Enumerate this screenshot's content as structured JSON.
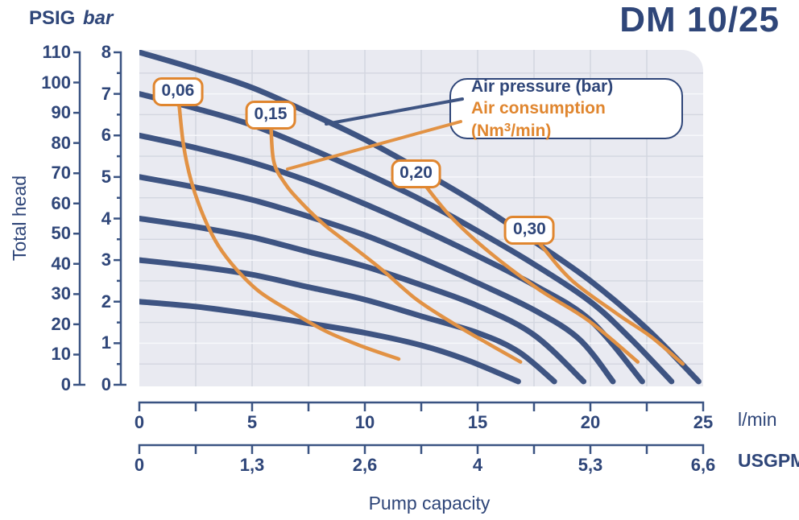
{
  "title": "DM 10/25",
  "y_axis": {
    "axis_label": "Total head",
    "left_unit": "PSIG",
    "right_unit": "bar",
    "psig_ticks": [
      0,
      10,
      20,
      30,
      40,
      50,
      60,
      70,
      80,
      90,
      100,
      110
    ],
    "bar_ticks": [
      0,
      1,
      2,
      3,
      4,
      5,
      6,
      7,
      8
    ]
  },
  "x_axis": {
    "label": "Pump capacity",
    "lmin_unit": "l/min",
    "usgpm_unit": "USGPM",
    "lmin_tick_labels": [
      "0",
      "5",
      "10",
      "15",
      "20",
      "25"
    ],
    "usgpm_tick_labels": [
      "0",
      "1,3",
      "2,6",
      "4",
      "5,3",
      "6,6"
    ]
  },
  "legend": {
    "air_pressure_label": "Air pressure (bar)",
    "air_consumption_prefix": "Air consumption (Nm",
    "air_consumption_sup": "3",
    "air_consumption_suffix": "/min)"
  },
  "colors": {
    "navy_text": "#2f4679",
    "curve_blue": "#3e5482",
    "curve_orange": "#e29244",
    "annotation_border_orange": "#e0862f",
    "plot_background": "#e9eaf1",
    "grid_dark": "#d3d6e0",
    "grid_light": "#f7f8fb",
    "axis": "#3a5382"
  },
  "chart_data": {
    "type": "line",
    "title": "DM 10/25",
    "xlabel": "Pump capacity",
    "x_units": [
      "l/min",
      "USGPM"
    ],
    "x_range_lmin": [
      0,
      25
    ],
    "x_range_usgpm": [
      0,
      6.6
    ],
    "ylabel": "Total head",
    "y_units": [
      "PSIG",
      "bar"
    ],
    "y_range_psig": [
      0,
      110
    ],
    "y_range_bar": [
      0,
      8
    ],
    "grid": "on",
    "legend_position": "top-right",
    "air_pressure_curves": [
      {
        "air_pressure_bar": 8,
        "points_lmin_bar": [
          [
            0,
            8
          ],
          [
            2.5,
            7.6
          ],
          [
            5,
            7.15
          ],
          [
            7.5,
            6.55
          ],
          [
            10,
            5.9
          ],
          [
            12.5,
            5.15
          ],
          [
            15,
            4.35
          ],
          [
            17.5,
            3.45
          ],
          [
            20,
            2.5
          ],
          [
            22.5,
            1.35
          ],
          [
            24.8,
            0.08
          ]
        ]
      },
      {
        "air_pressure_bar": 7,
        "points_lmin_bar": [
          [
            0,
            7
          ],
          [
            2.5,
            6.65
          ],
          [
            5,
            6.25
          ],
          [
            7.5,
            5.7
          ],
          [
            10,
            5.1
          ],
          [
            12.5,
            4.45
          ],
          [
            15,
            3.7
          ],
          [
            17.5,
            2.9
          ],
          [
            20,
            2.0
          ],
          [
            21.8,
            1.1
          ],
          [
            23.6,
            0.08
          ]
        ]
      },
      {
        "air_pressure_bar": 6,
        "points_lmin_bar": [
          [
            0,
            6
          ],
          [
            2.5,
            5.7
          ],
          [
            5,
            5.35
          ],
          [
            7.5,
            4.9
          ],
          [
            10,
            4.35
          ],
          [
            12.5,
            3.75
          ],
          [
            15,
            3.1
          ],
          [
            17.5,
            2.4
          ],
          [
            20,
            1.55
          ],
          [
            22.3,
            0.08
          ]
        ]
      },
      {
        "air_pressure_bar": 5,
        "points_lmin_bar": [
          [
            0,
            5
          ],
          [
            2.5,
            4.75
          ],
          [
            5,
            4.45
          ],
          [
            7.5,
            4.05
          ],
          [
            10,
            3.6
          ],
          [
            12.5,
            3.05
          ],
          [
            15,
            2.45
          ],
          [
            17.5,
            1.8
          ],
          [
            19.5,
            1.1
          ],
          [
            21.0,
            0.08
          ]
        ]
      },
      {
        "air_pressure_bar": 4,
        "points_lmin_bar": [
          [
            0,
            4
          ],
          [
            2.5,
            3.8
          ],
          [
            5,
            3.55
          ],
          [
            7.5,
            3.2
          ],
          [
            10,
            2.85
          ],
          [
            12.5,
            2.4
          ],
          [
            15,
            1.9
          ],
          [
            17.5,
            1.2
          ],
          [
            19.7,
            0.08
          ]
        ]
      },
      {
        "air_pressure_bar": 3,
        "points_lmin_bar": [
          [
            0,
            3
          ],
          [
            2.5,
            2.85
          ],
          [
            5,
            2.65
          ],
          [
            7.5,
            2.35
          ],
          [
            10,
            2.05
          ],
          [
            12.5,
            1.65
          ],
          [
            15,
            1.25
          ],
          [
            16.8,
            0.8
          ],
          [
            18.4,
            0.08
          ]
        ]
      },
      {
        "air_pressure_bar": 2,
        "points_lmin_bar": [
          [
            0,
            2
          ],
          [
            2.5,
            1.88
          ],
          [
            5,
            1.7
          ],
          [
            7.5,
            1.48
          ],
          [
            10,
            1.25
          ],
          [
            12.5,
            0.95
          ],
          [
            14.5,
            0.6
          ],
          [
            16.8,
            0.08
          ]
        ]
      }
    ],
    "air_consumption_curves": [
      {
        "label": "0,06",
        "label_pos_lmin_bar": [
          1.71,
          7.06
        ],
        "points_lmin_bar": [
          [
            1.71,
            7.06
          ],
          [
            1.95,
            5.8
          ],
          [
            2.3,
            4.9
          ],
          [
            2.85,
            4.05
          ],
          [
            3.5,
            3.35
          ],
          [
            4.3,
            2.78
          ],
          [
            5.3,
            2.25
          ],
          [
            6.6,
            1.8
          ],
          [
            8.3,
            1.28
          ],
          [
            9.9,
            0.92
          ],
          [
            11.5,
            0.62
          ]
        ]
      },
      {
        "label": "0,15",
        "label_pos_lmin_bar": [
          5.82,
          6.48
        ],
        "points_lmin_bar": [
          [
            5.82,
            6.48
          ],
          [
            5.95,
            5.4
          ],
          [
            6.45,
            4.85
          ],
          [
            7.15,
            4.4
          ],
          [
            8.2,
            3.85
          ],
          [
            9.4,
            3.35
          ],
          [
            10.8,
            2.75
          ],
          [
            12.3,
            2.05
          ],
          [
            14.0,
            1.45
          ],
          [
            15.5,
            0.98
          ],
          [
            16.9,
            0.55
          ]
        ]
      },
      {
        "label": "0,20",
        "label_pos_lmin_bar": [
          12.27,
          5.08
        ],
        "points_lmin_bar": [
          [
            12.27,
            5.08
          ],
          [
            12.6,
            4.85
          ],
          [
            13.8,
            4.05
          ],
          [
            15.5,
            3.2
          ],
          [
            17.7,
            2.3
          ],
          [
            19.9,
            1.55
          ],
          [
            22.1,
            0.55
          ]
        ]
      },
      {
        "label": "0,30",
        "label_pos_lmin_bar": [
          17.3,
          3.71
        ],
        "points_lmin_bar": [
          [
            17.3,
            3.71
          ],
          [
            17.9,
            3.3
          ],
          [
            19.2,
            2.5
          ],
          [
            21.2,
            1.7
          ],
          [
            22.7,
            1.15
          ],
          [
            24.1,
            0.5
          ]
        ]
      }
    ]
  }
}
